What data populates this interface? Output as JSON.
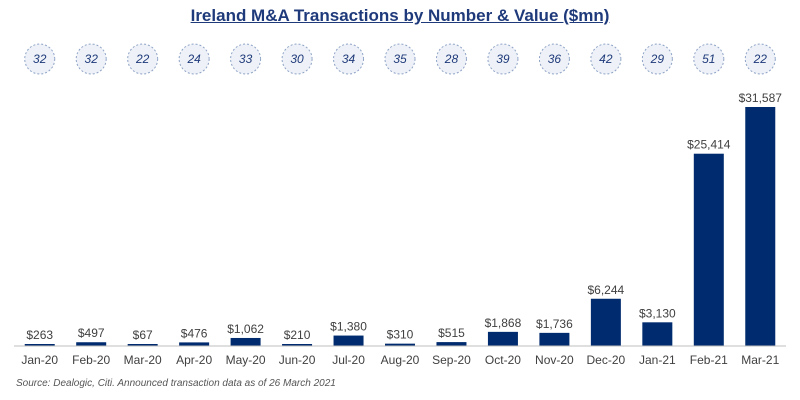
{
  "chart_data": {
    "type": "bar",
    "title": "Ireland M&A Transactions by Number & Value ($mn)",
    "categories": [
      "Jan-20",
      "Feb-20",
      "Mar-20",
      "Apr-20",
      "May-20",
      "Jun-20",
      "Jul-20",
      "Aug-20",
      "Sep-20",
      "Oct-20",
      "Nov-20",
      "Dec-20",
      "Jan-21",
      "Feb-21",
      "Mar-21"
    ],
    "series": [
      {
        "values": [
          263,
          497,
          67,
          476,
          1062,
          210,
          1380,
          310,
          515,
          1868,
          1736,
          6244,
          3130,
          25414,
          31587
        ]
      }
    ],
    "value_labels": [
      "$263",
      "$497",
      "$67",
      "$476",
      "$1,062",
      "$210",
      "$1,380",
      "$310",
      "$515",
      "$1,868",
      "$1,736",
      "$6,244",
      "$3,130",
      "$25,414",
      "$31,587"
    ],
    "transaction_counts": [
      32,
      32,
      22,
      24,
      33,
      30,
      34,
      35,
      28,
      39,
      36,
      42,
      29,
      51,
      22
    ],
    "ylim": [
      0,
      31587
    ],
    "grid": false,
    "bar_color": "#002b6e",
    "count_color": "#1f3a7a"
  },
  "source_note": "Source: Dealogic, Citi. Announced transaction data as of 26 March 2021"
}
